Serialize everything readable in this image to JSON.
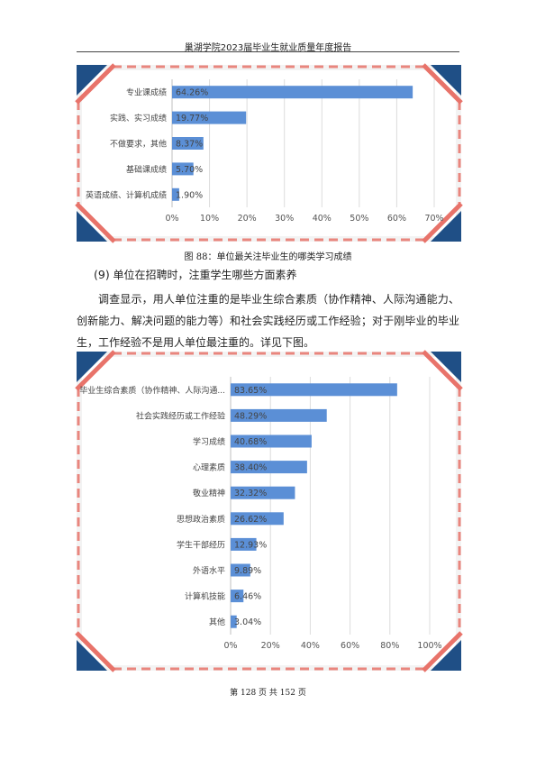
{
  "header": {
    "title": "巢湖学院2023届毕业生就业质量年度报告"
  },
  "figure1": {
    "caption": "图 88：单位最关注毕业生的哪类学习成绩"
  },
  "section": {
    "number": "(9)",
    "title": "单位在招聘时，注重学生哪些方面素养"
  },
  "paragraph": "调查显示，用人单位注重的是毕业生综合素质（协作精神、人际沟通能力、创新能力、解决问题的能力等）和社会实践经历或工作经验；对于刚毕业的毕业生，工作经验不是用人单位最注重的。详见下图。",
  "footer": {
    "text": "第 128 页 共 152 页"
  },
  "colors": {
    "bar": "#5b8fd6",
    "frame_accent_red": "#e8736a",
    "frame_accent_blue": "#1f4f86"
  },
  "chart_data": [
    {
      "type": "bar",
      "orientation": "horizontal",
      "categories": [
        "专业课成绩",
        "实践、实习成绩",
        "不做要求，其他",
        "基础课成绩",
        "英语成绩、计算机成绩"
      ],
      "values": [
        64.26,
        19.77,
        8.37,
        5.7,
        1.9
      ],
      "data_labels": [
        "64.26%",
        "19.77%",
        "8.37%",
        "5.70%",
        "1.90%"
      ],
      "xlim": [
        0,
        70
      ],
      "xticks": [
        "0%",
        "10%",
        "20%",
        "30%",
        "40%",
        "50%",
        "60%",
        "70%"
      ],
      "grid": true
    },
    {
      "type": "bar",
      "orientation": "horizontal",
      "categories": [
        "毕业生综合素质（协作精神、人际沟通...",
        "社会实践经历或工作经验",
        "学习成绩",
        "心理素质",
        "敬业精神",
        "思想政治素质",
        "学生干部经历",
        "外语水平",
        "计算机技能",
        "其他"
      ],
      "values": [
        83.65,
        48.29,
        40.68,
        38.4,
        32.32,
        26.62,
        12.93,
        9.89,
        6.46,
        3.04
      ],
      "data_labels": [
        "83.65%",
        "48.29%",
        "40.68%",
        "38.40%",
        "32.32%",
        "26.62%",
        "12.93%",
        "9.89%",
        "6.46%",
        "3.04%"
      ],
      "xlim": [
        0,
        100
      ],
      "xticks": [
        "0%",
        "20%",
        "40%",
        "60%",
        "80%",
        "100%"
      ],
      "grid": true
    }
  ]
}
